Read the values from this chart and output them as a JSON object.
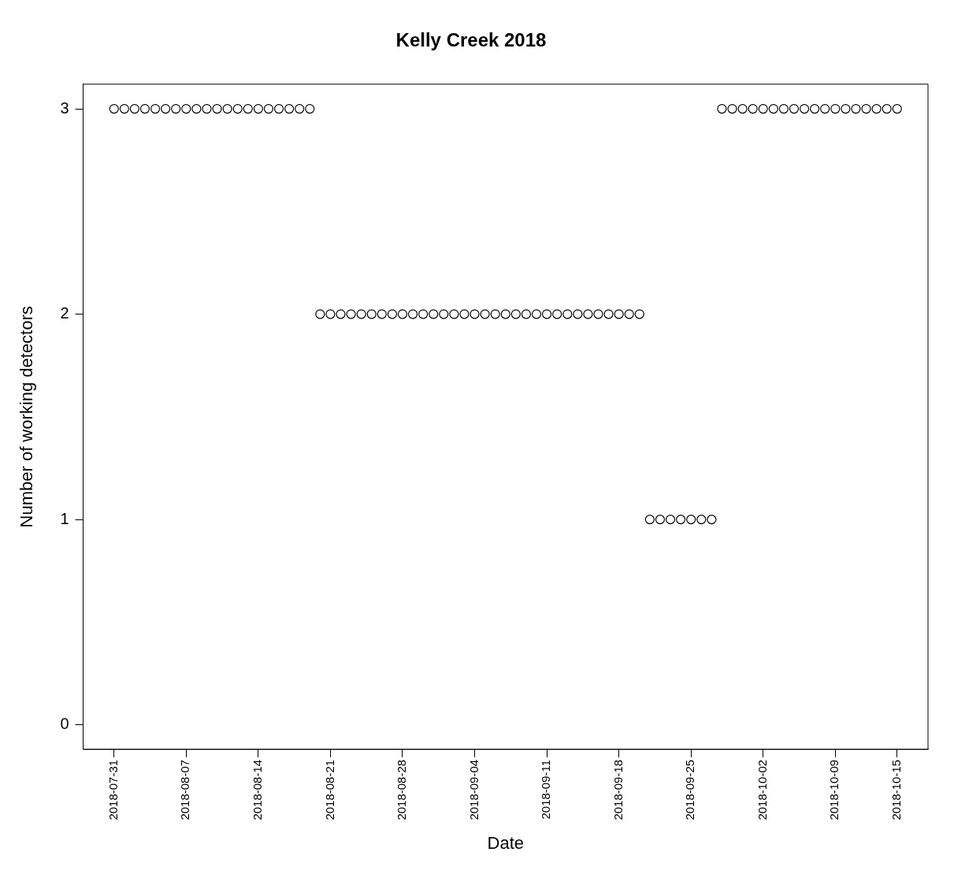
{
  "chart_data": {
    "type": "scatter",
    "title": "Kelly Creek 2018",
    "xlabel": "Date",
    "ylabel": "Number of working detectors",
    "x": [
      "2018-07-31",
      "2018-08-01",
      "2018-08-02",
      "2018-08-03",
      "2018-08-04",
      "2018-08-05",
      "2018-08-06",
      "2018-08-07",
      "2018-08-08",
      "2018-08-09",
      "2018-08-10",
      "2018-08-11",
      "2018-08-12",
      "2018-08-13",
      "2018-08-14",
      "2018-08-15",
      "2018-08-16",
      "2018-08-17",
      "2018-08-18",
      "2018-08-19",
      "2018-08-20",
      "2018-08-21",
      "2018-08-22",
      "2018-08-23",
      "2018-08-24",
      "2018-08-25",
      "2018-08-26",
      "2018-08-27",
      "2018-08-28",
      "2018-08-29",
      "2018-08-30",
      "2018-08-31",
      "2018-09-01",
      "2018-09-02",
      "2018-09-03",
      "2018-09-04",
      "2018-09-05",
      "2018-09-06",
      "2018-09-07",
      "2018-09-08",
      "2018-09-09",
      "2018-09-10",
      "2018-09-11",
      "2018-09-12",
      "2018-09-13",
      "2018-09-14",
      "2018-09-15",
      "2018-09-16",
      "2018-09-17",
      "2018-09-18",
      "2018-09-19",
      "2018-09-20",
      "2018-09-21",
      "2018-09-22",
      "2018-09-23",
      "2018-09-24",
      "2018-09-25",
      "2018-09-26",
      "2018-09-27",
      "2018-09-28",
      "2018-09-29",
      "2018-09-30",
      "2018-10-01",
      "2018-10-02",
      "2018-10-03",
      "2018-10-04",
      "2018-10-05",
      "2018-10-06",
      "2018-10-07",
      "2018-10-08",
      "2018-10-09",
      "2018-10-10",
      "2018-10-11",
      "2018-10-12",
      "2018-10-13",
      "2018-10-14",
      "2018-10-15"
    ],
    "series": [
      {
        "color": "#000000",
        "values": [
          3,
          3,
          3,
          3,
          3,
          3,
          3,
          3,
          3,
          3,
          3,
          3,
          3,
          3,
          3,
          3,
          3,
          3,
          3,
          3,
          2,
          2,
          2,
          2,
          2,
          2,
          2,
          2,
          2,
          2,
          2,
          2,
          2,
          2,
          2,
          2,
          2,
          2,
          2,
          2,
          2,
          2,
          2,
          2,
          2,
          2,
          2,
          2,
          2,
          2,
          2,
          2,
          1,
          1,
          1,
          1,
          1,
          1,
          1,
          3,
          3,
          3,
          3,
          3,
          3,
          3,
          3,
          3,
          3,
          3,
          3,
          3,
          3,
          3,
          3,
          3,
          3
        ]
      }
    ],
    "xlim": [
      "2018-07-28",
      "2018-10-18"
    ],
    "xticks": [
      "2018-07-31",
      "2018-08-07",
      "2018-08-14",
      "2018-08-21",
      "2018-08-28",
      "2018-09-04",
      "2018-09-11",
      "2018-09-18",
      "2018-09-25",
      "2018-10-02",
      "2018-10-09",
      "2018-10-15"
    ],
    "ylim": [
      -0.12,
      3.12
    ],
    "yticks": [
      0,
      1,
      2,
      3
    ],
    "marker": "circle",
    "grid": false,
    "legend": false
  }
}
